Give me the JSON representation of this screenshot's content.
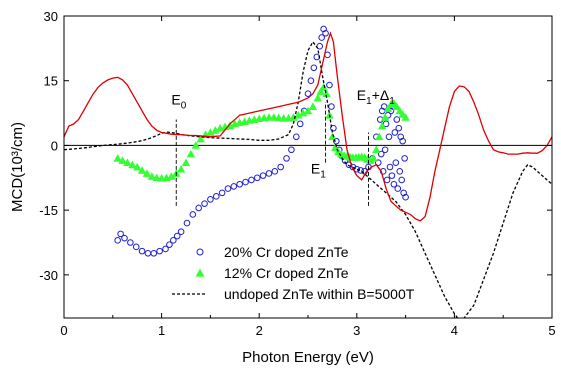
{
  "chart_data": {
    "type": "line",
    "xlabel": "Photon Energy (eV)",
    "ylabel": "MCD(10³/cm)",
    "xlim": [
      0,
      5
    ],
    "ylim": [
      -40,
      30
    ],
    "xticks": [
      0,
      1,
      2,
      3,
      4,
      5
    ],
    "yticks": [
      -30,
      -15,
      0,
      15,
      30
    ],
    "xtick_labels": [
      "0",
      "1",
      "2",
      "3",
      "4",
      "5"
    ],
    "ytick_labels": [
      "-30",
      "-15",
      "0",
      "15",
      "30"
    ],
    "grid": false,
    "legend_position": "bottom-center",
    "annotations": {
      "E0": {
        "text": "E",
        "sub": "0",
        "x_line": 1.15,
        "y_line": [
          -14,
          6
        ],
        "x_text": 1.1,
        "y_text": 9.5
      },
      "E1": {
        "text": "E",
        "sub": "1",
        "x_line": 2.68,
        "y_line": [
          -4,
          10
        ],
        "x_text": 2.53,
        "y_text": -6.5
      },
      "E1D1": {
        "text": "E",
        "sub": "1",
        "plus": "+Δ",
        "sub2": "1",
        "x_line": 3.12,
        "y_line": [
          -14,
          3
        ],
        "x_text": 3.0,
        "y_text": 10.5
      }
    },
    "series": [
      {
        "name": "20% Cr doped ZnTe",
        "style": "circle-open",
        "color": "#1f1fd6",
        "x": [
          0.55,
          0.58,
          0.62,
          0.68,
          0.74,
          0.8,
          0.86,
          0.92,
          0.98,
          1.04,
          1.08,
          1.12,
          1.16,
          1.2,
          1.26,
          1.32,
          1.38,
          1.44,
          1.5,
          1.56,
          1.62,
          1.68,
          1.74,
          1.8,
          1.86,
          1.92,
          1.98,
          2.04,
          2.1,
          2.16,
          2.22,
          2.28,
          2.33,
          2.38,
          2.42,
          2.46,
          2.5,
          2.53,
          2.56,
          2.59,
          2.62,
          2.64,
          2.66,
          2.68,
          2.7,
          2.72,
          2.74,
          2.76,
          2.79,
          2.82,
          2.85,
          2.88,
          2.92,
          2.96,
          3.0,
          3.04,
          3.08,
          3.12,
          3.16,
          3.2,
          3.22,
          3.24,
          3.25,
          3.26,
          3.27,
          3.28,
          3.29,
          3.3,
          3.31,
          3.32,
          3.33,
          3.34,
          3.35,
          3.36,
          3.37,
          3.38,
          3.39,
          3.4,
          3.41,
          3.42,
          3.43,
          3.44,
          3.45,
          3.46,
          3.47,
          3.48,
          3.49,
          3.5
        ],
        "y": [
          -22,
          -20.5,
          -21.5,
          -22.5,
          -23.5,
          -24.5,
          -25,
          -25,
          -24.5,
          -24,
          -23,
          -22,
          -21,
          -20,
          -18,
          -16,
          -14.5,
          -13.5,
          -12.5,
          -11.8,
          -11,
          -10,
          -9.5,
          -9,
          -8.5,
          -8,
          -7.5,
          -7,
          -6.5,
          -6,
          -5,
          -3,
          -1,
          2,
          5,
          8,
          12,
          15,
          18,
          20.5,
          23,
          25,
          27,
          26,
          21,
          14,
          9,
          4,
          1,
          -1,
          -2.5,
          -3.5,
          -4.5,
          -5,
          -5.5,
          -5.8,
          -6,
          -5,
          -3,
          2,
          -4,
          6,
          -2,
          8,
          -6,
          9,
          -1,
          5,
          -8,
          7,
          2,
          -5,
          8,
          -7,
          9,
          -9,
          3,
          -4,
          6,
          -10,
          4,
          -6,
          2,
          -8,
          1,
          -11,
          -3,
          -12
        ]
      },
      {
        "name": "12% Cr doped ZnTe",
        "style": "triangle-filled",
        "color": "#33ff33",
        "x": [
          0.55,
          0.6,
          0.65,
          0.7,
          0.75,
          0.8,
          0.85,
          0.9,
          0.95,
          1.0,
          1.05,
          1.1,
          1.15,
          1.2,
          1.25,
          1.3,
          1.35,
          1.4,
          1.45,
          1.5,
          1.55,
          1.6,
          1.65,
          1.7,
          1.75,
          1.8,
          1.85,
          1.9,
          1.95,
          2.0,
          2.05,
          2.1,
          2.15,
          2.2,
          2.25,
          2.3,
          2.35,
          2.4,
          2.45,
          2.5,
          2.55,
          2.6,
          2.63,
          2.66,
          2.69,
          2.72,
          2.75,
          2.78,
          2.81,
          2.84,
          2.87,
          2.9,
          2.93,
          2.96,
          2.99,
          3.02,
          3.05,
          3.08,
          3.11,
          3.14,
          3.17,
          3.2,
          3.23,
          3.26,
          3.29,
          3.32,
          3.35,
          3.38,
          3.41,
          3.44,
          3.47,
          3.5
        ],
        "y": [
          -3,
          -3.5,
          -4,
          -4.5,
          -5,
          -5.8,
          -6.5,
          -7.2,
          -7.5,
          -7.6,
          -7.5,
          -7.2,
          -6.5,
          -5.5,
          -4,
          -2,
          0,
          1.5,
          2.5,
          3,
          3.5,
          4,
          4.3,
          4.6,
          5,
          5.3,
          5.5,
          5.8,
          6,
          6.2,
          6.4,
          6.5,
          6.5,
          6.4,
          6.3,
          6.3,
          6.5,
          7,
          7.5,
          8,
          9,
          11,
          12.5,
          13.5,
          12,
          7,
          2,
          -0.5,
          -1.5,
          -2,
          -2.3,
          -2.5,
          -2.7,
          -2.8,
          -2.8,
          -2.7,
          -2.6,
          -2.8,
          -3.2,
          -3.5,
          -3,
          -1,
          2,
          4.5,
          6.5,
          8.5,
          9.5,
          9.8,
          9,
          8,
          7.2,
          6.5
        ]
      },
      {
        "name": "undoped ZnTe within B=5000T",
        "style": "dashed",
        "color": "#000000",
        "x": [
          0.0,
          0.1,
          0.2,
          0.3,
          0.4,
          0.5,
          0.6,
          0.7,
          0.8,
          0.9,
          0.95,
          1.0,
          1.05,
          1.1,
          1.15,
          1.2,
          1.3,
          1.4,
          1.5,
          1.6,
          1.7,
          1.8,
          1.9,
          2.0,
          2.1,
          2.2,
          2.3,
          2.35,
          2.4,
          2.45,
          2.5,
          2.55,
          2.6,
          2.65,
          2.7,
          2.75,
          2.8,
          2.85,
          2.9,
          2.95,
          3.0,
          3.05,
          3.1,
          3.15,
          3.2,
          3.3,
          3.4,
          3.5,
          3.6,
          3.7,
          3.8,
          3.9,
          4.0,
          4.05,
          4.1,
          4.2,
          4.3,
          4.4,
          4.5,
          4.6,
          4.7,
          4.75,
          4.8,
          4.9,
          5.0
        ],
        "y": [
          -1,
          -0.8,
          -0.6,
          -0.3,
          0,
          0.2,
          0.4,
          0.7,
          1.1,
          1.8,
          2.3,
          2.8,
          3.1,
          3,
          2.8,
          2.5,
          2.2,
          2,
          1.8,
          1.7,
          1.6,
          1.5,
          1.4,
          1.2,
          1.2,
          1.5,
          2.5,
          5,
          10,
          17,
          22,
          24,
          22.5,
          16,
          10,
          3,
          -1,
          -3,
          -4.5,
          -5,
          -5.5,
          -6,
          -7,
          -8,
          -9,
          -11,
          -13,
          -16,
          -20,
          -25,
          -30,
          -35,
          -39,
          -40.5,
          -40,
          -37,
          -31,
          -25,
          -18,
          -11,
          -6,
          -4.5,
          -5,
          -7,
          -9
        ]
      },
      {
        "name": "",
        "style": "line",
        "color": "#e00000",
        "x": [
          0.0,
          0.05,
          0.1,
          0.15,
          0.2,
          0.25,
          0.3,
          0.35,
          0.4,
          0.45,
          0.5,
          0.55,
          0.6,
          0.65,
          0.7,
          0.75,
          0.8,
          0.85,
          0.9,
          0.95,
          1.0,
          1.05,
          1.1,
          1.15,
          1.2,
          1.25,
          1.3,
          1.35,
          1.4,
          1.5,
          1.6,
          1.7,
          1.8,
          1.9,
          2.0,
          2.1,
          2.2,
          2.3,
          2.4,
          2.5,
          2.55,
          2.6,
          2.65,
          2.7,
          2.73,
          2.76,
          2.8,
          2.85,
          2.9,
          2.95,
          3.0,
          3.05,
          3.1,
          3.15,
          3.2,
          3.25,
          3.3,
          3.35,
          3.4,
          3.45,
          3.5,
          3.55,
          3.6,
          3.65,
          3.7,
          3.75,
          3.8,
          3.85,
          3.9,
          3.95,
          4.0,
          4.05,
          4.1,
          4.15,
          4.2,
          4.25,
          4.3,
          4.35,
          4.4,
          4.45,
          4.5,
          4.55,
          4.6,
          4.65,
          4.7,
          4.75,
          4.8,
          4.85,
          4.9,
          4.95,
          5.0
        ],
        "y": [
          2,
          4.5,
          5,
          6,
          8,
          10,
          12,
          13.5,
          14.5,
          15.2,
          15.6,
          15.8,
          15.2,
          14,
          12,
          10,
          8,
          6,
          4.5,
          3.5,
          3,
          2.8,
          2.6,
          2.5,
          2.5,
          2.4,
          2.3,
          2.3,
          2.2,
          2,
          2.2,
          5,
          7,
          7.5,
          8,
          8.5,
          9,
          9.5,
          10,
          11,
          12,
          14,
          19,
          24,
          26,
          24,
          16,
          7,
          -1,
          -5,
          -7,
          -8,
          -6,
          -5,
          -4.5,
          -6,
          -10,
          -13,
          -14,
          -15,
          -15.5,
          -16,
          -17,
          -17.5,
          -16.5,
          -12,
          -6,
          -1,
          4,
          9,
          12.5,
          13.8,
          13.6,
          12.5,
          10,
          7,
          3.5,
          1,
          -1,
          -1.5,
          -1.7,
          -2,
          -2,
          -2,
          -1.8,
          -1.7,
          -1.8,
          -1.8,
          -1.2,
          0,
          2
        ]
      }
    ]
  }
}
